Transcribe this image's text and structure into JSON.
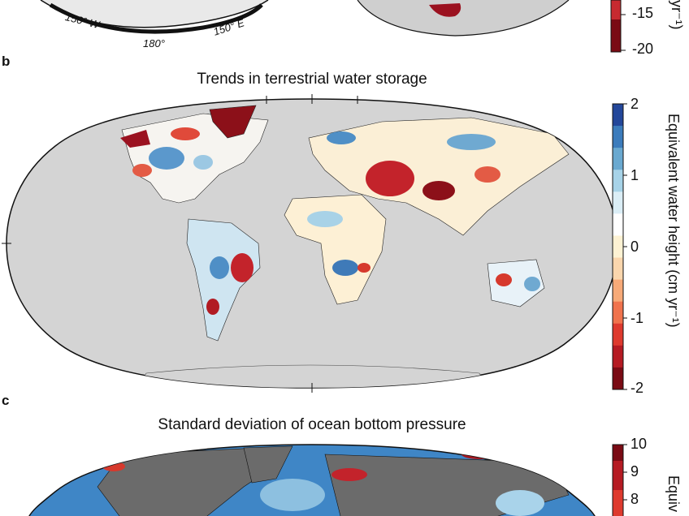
{
  "panel_a": {
    "polar_labels": [
      "150° W",
      "180°",
      "150° E"
    ],
    "colorbar": {
      "tick_labels": [
        "-15",
        "-20"
      ],
      "label_fragment": "yr⁻¹)"
    }
  },
  "panel_b": {
    "letter": "b",
    "title": "Trends in terrestrial water storage",
    "colorbar": {
      "tick_labels": [
        "2",
        "1",
        "0",
        "-1",
        "-2"
      ],
      "label": "Equivalent water height (cm yr⁻¹)",
      "range": [
        -2,
        2
      ],
      "colormap": [
        "#7a0b14",
        "#b51b23",
        "#de3a2e",
        "#f0734d",
        "#f7aa78",
        "#fad6ad",
        "#fdf2d3",
        "#ffffff",
        "#dbeef6",
        "#a7d3e8",
        "#6aa9d0",
        "#3c7cbc",
        "#23479a"
      ]
    }
  },
  "panel_c": {
    "letter": "c",
    "title": "Standard deviation of ocean bottom pressure",
    "colorbar": {
      "tick_labels": [
        "10",
        "9",
        "8"
      ],
      "label_fragment": "Equiv"
    }
  },
  "colors": {
    "land_gray": "#d4d4d4",
    "ocean_dark_gray": "#6b6b6b",
    "ocean_blue": "#3f86c6"
  }
}
